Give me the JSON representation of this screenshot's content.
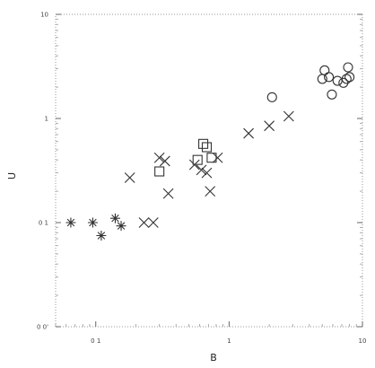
{
  "chart_data": {
    "type": "scatter",
    "title": "",
    "xlabel": "B",
    "ylabel": "U",
    "xscale": "log",
    "yscale": "log",
    "xlim": [
      0.05,
      10
    ],
    "ylim": [
      0.01,
      10
    ],
    "x_ticks": [
      {
        "value": 0.1,
        "label": "0 1"
      },
      {
        "value": 1,
        "label": "1"
      },
      {
        "value": 10,
        "label": "10"
      }
    ],
    "y_ticks": [
      {
        "value": 0.01,
        "label": "0 0'"
      },
      {
        "value": 0.1,
        "label": "0 1"
      },
      {
        "value": 1,
        "label": "1"
      },
      {
        "value": 10,
        "label": "10"
      }
    ],
    "grid": false,
    "legend": "none",
    "series": [
      {
        "marker": "asterisk",
        "points": [
          {
            "x": 0.065,
            "y": 0.1
          },
          {
            "x": 0.095,
            "y": 0.1
          },
          {
            "x": 0.11,
            "y": 0.075
          },
          {
            "x": 0.14,
            "y": 0.11
          },
          {
            "x": 0.155,
            "y": 0.093
          }
        ]
      },
      {
        "marker": "x",
        "points": [
          {
            "x": 0.18,
            "y": 0.27
          },
          {
            "x": 0.23,
            "y": 0.1
          },
          {
            "x": 0.27,
            "y": 0.1
          },
          {
            "x": 0.3,
            "y": 0.42
          },
          {
            "x": 0.33,
            "y": 0.39
          },
          {
            "x": 0.35,
            "y": 0.19
          },
          {
            "x": 0.55,
            "y": 0.36
          },
          {
            "x": 0.62,
            "y": 0.32
          },
          {
            "x": 0.68,
            "y": 0.3
          },
          {
            "x": 0.72,
            "y": 0.2
          },
          {
            "x": 0.82,
            "y": 0.42
          },
          {
            "x": 1.4,
            "y": 0.72
          },
          {
            "x": 2.0,
            "y": 0.85
          },
          {
            "x": 2.8,
            "y": 1.05
          }
        ]
      },
      {
        "marker": "square",
        "points": [
          {
            "x": 0.3,
            "y": 0.31
          },
          {
            "x": 0.58,
            "y": 0.4
          },
          {
            "x": 0.64,
            "y": 0.57
          },
          {
            "x": 0.68,
            "y": 0.53
          },
          {
            "x": 0.74,
            "y": 0.42
          }
        ]
      },
      {
        "marker": "circle",
        "points": [
          {
            "x": 2.1,
            "y": 1.6
          },
          {
            "x": 5.2,
            "y": 2.9
          },
          {
            "x": 5.6,
            "y": 2.5
          },
          {
            "x": 5.0,
            "y": 2.4
          },
          {
            "x": 5.9,
            "y": 1.7
          },
          {
            "x": 6.5,
            "y": 2.3
          },
          {
            "x": 7.2,
            "y": 2.2
          },
          {
            "x": 7.6,
            "y": 2.4
          },
          {
            "x": 8.0,
            "y": 2.5
          },
          {
            "x": 7.8,
            "y": 3.1
          }
        ]
      }
    ]
  }
}
